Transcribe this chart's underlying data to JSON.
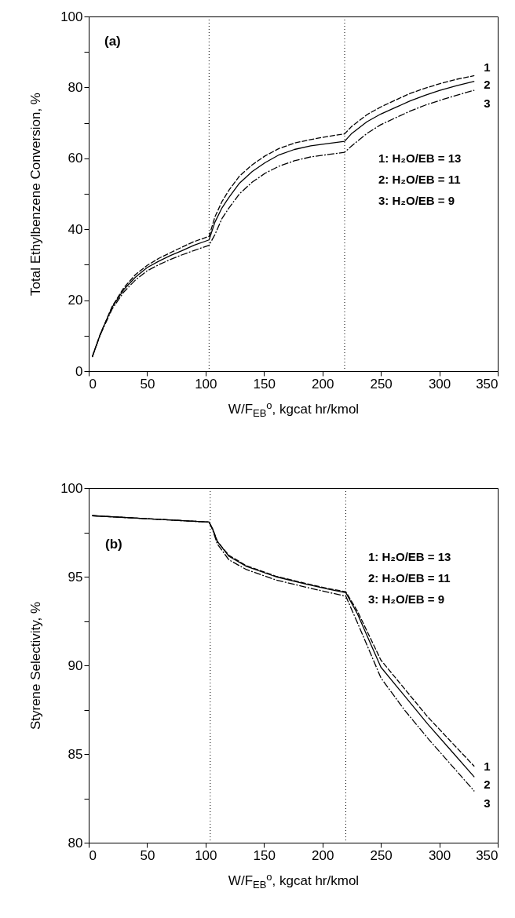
{
  "chart_data": [
    {
      "type": "line",
      "ylabel": "Total Ethylbenzene Conversion, %",
      "xlabel": "W/F$_{EB}$$^{o}$, kgcat hr/kmol",
      "x": [
        3,
        10,
        20,
        30,
        40,
        50,
        60,
        70,
        80,
        90,
        103,
        108,
        114,
        120,
        129,
        140,
        151,
        163,
        176,
        190,
        205,
        219,
        225,
        238,
        250,
        263,
        275,
        288,
        300,
        315,
        330
      ],
      "series": [
        {
          "name": "1",
          "color": "#000000",
          "line_style": "dashed",
          "values": [
            4,
            10.5,
            18.2,
            23.5,
            27.2,
            29.8,
            31.8,
            33.4,
            35,
            36.5,
            38,
            43.5,
            47.8,
            51,
            55,
            58.2,
            60.7,
            62.8,
            64.3,
            65.3,
            66.2,
            66.9,
            69,
            72.3,
            74.5,
            76.5,
            78.3,
            79.8,
            81,
            82.3,
            83.3
          ]
        },
        {
          "name": "2",
          "color": "#000000",
          "line_style": "solid",
          "values": [
            4,
            10.5,
            18,
            23,
            26.5,
            29.2,
            31,
            32.6,
            34,
            35.5,
            37,
            42,
            46,
            49,
            53,
            56.3,
            58.8,
            61,
            62.5,
            63.5,
            64.2,
            64.8,
            67,
            70.3,
            72.5,
            74.4,
            76.2,
            77.8,
            79.1,
            80.5,
            81.7
          ]
        },
        {
          "name": "3",
          "color": "#000000",
          "line_style": "dashdot",
          "values": [
            4,
            10.3,
            17.5,
            22.3,
            25.7,
            28.3,
            30,
            31.5,
            32.8,
            34,
            35.5,
            38.5,
            43,
            46,
            50,
            53.3,
            55.8,
            57.8,
            59.3,
            60.4,
            61.1,
            61.7,
            63.5,
            67,
            69.5,
            71.5,
            73.3,
            75,
            76.3,
            77.8,
            79.2
          ]
        }
      ],
      "xlim": [
        0,
        350
      ],
      "xticks": [
        0,
        50,
        100,
        150,
        200,
        250,
        300,
        350
      ],
      "ylim": [
        0,
        100
      ],
      "yticks": [
        0,
        {
          "value": 10,
          "label": null
        },
        20,
        {
          "value": 30,
          "label": null
        },
        40,
        {
          "value": 50,
          "label": null
        },
        60,
        {
          "value": 70,
          "label": null
        },
        80,
        {
          "value": 90,
          "label": null
        },
        100
      ],
      "ref_lines": [
        {
          "axis": "x",
          "value": 103,
          "color": "#000000",
          "line_style": "dotted"
        },
        {
          "axis": "x",
          "value": 219,
          "color": "#000000",
          "line_style": "dotted"
        }
      ],
      "annotations": [
        "(a)",
        "1: H₂O/EB = 13",
        "2: H₂O/EB = 11",
        "3: H₂O/EB = 9"
      ],
      "grid": false
    },
    {
      "type": "line",
      "ylabel": "Styrene Selectivity, %",
      "xlabel": "W/F$_{EB}$$^{o}$, kgcat hr/kmol",
      "x": [
        3,
        50,
        103,
        106,
        110,
        120,
        135,
        160,
        185,
        205,
        220,
        230,
        250,
        270,
        290,
        310,
        330
      ],
      "series": [
        {
          "name": "1",
          "color": "#000000",
          "line_style": "dashed",
          "values": [
            98.44,
            98.27,
            98.08,
            97.7,
            97.0,
            96.2,
            95.62,
            95.03,
            94.63,
            94.33,
            94.15,
            93.05,
            90.3,
            88.7,
            87.1,
            85.7,
            84.3
          ]
        },
        {
          "name": "2",
          "color": "#000000",
          "line_style": "solid",
          "values": [
            98.44,
            98.27,
            98.08,
            97.7,
            97.0,
            96.15,
            95.58,
            95.0,
            94.6,
            94.3,
            94.1,
            92.9,
            89.9,
            88.3,
            86.7,
            85.2,
            83.7
          ]
        },
        {
          "name": "3",
          "color": "#000000",
          "line_style": "dashdot",
          "values": [
            98.44,
            98.27,
            98.08,
            97.65,
            96.85,
            95.95,
            95.4,
            94.82,
            94.42,
            94.12,
            93.9,
            92.4,
            89.3,
            87.5,
            85.9,
            84.4,
            82.9
          ]
        }
      ],
      "xlim": [
        0,
        350
      ],
      "xticks": [
        0,
        50,
        100,
        150,
        200,
        250,
        300,
        350
      ],
      "ylim": [
        80,
        100
      ],
      "yticks": [
        80,
        {
          "value": 82.5,
          "label": null
        },
        85,
        {
          "value": 87.5,
          "label": null
        },
        90,
        {
          "value": 92.5,
          "label": null
        },
        95,
        {
          "value": 97.5,
          "label": null
        },
        100
      ],
      "ref_lines": [
        {
          "axis": "x",
          "value": 104,
          "color": "#000000",
          "line_style": "dotted"
        },
        {
          "axis": "x",
          "value": 220,
          "color": "#000000",
          "line_style": "dotted"
        }
      ],
      "annotations": [
        "(b)",
        "1: H₂O/EB = 13",
        "2: H₂O/EB = 11",
        "3: H₂O/EB = 9"
      ],
      "grid": false
    }
  ]
}
